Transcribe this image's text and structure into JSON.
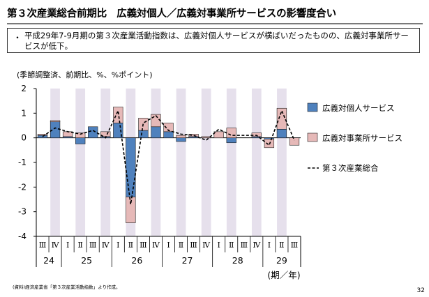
{
  "header": {
    "title": "第３次産業総合前期比　広義対個人／広義対事業所サービスの影響度合い"
  },
  "note": {
    "bullet": "・",
    "text": "平成29年7-9月期の第３次産業活動指数は、広義対個人サービスが横ばいだったものの、広義対事業所サービスが低下。"
  },
  "chart_data": {
    "type": "bar",
    "unit_label": "(季節調整済、前期比、%、%ポイント)",
    "x_unit_label": "(期／年)",
    "categories": [
      "Ⅲ",
      "Ⅳ",
      "Ⅰ",
      "Ⅱ",
      "Ⅲ",
      "Ⅳ",
      "Ⅰ",
      "Ⅱ",
      "Ⅲ",
      "Ⅳ",
      "Ⅰ",
      "Ⅱ",
      "Ⅲ",
      "Ⅳ",
      "Ⅰ",
      "Ⅱ",
      "Ⅲ",
      "Ⅳ",
      "Ⅰ",
      "Ⅱ",
      "Ⅲ"
    ],
    "years": [
      {
        "label": "24",
        "start": 0,
        "end": 1
      },
      {
        "label": "25",
        "start": 2,
        "end": 5
      },
      {
        "label": "26",
        "start": 6,
        "end": 9
      },
      {
        "label": "27",
        "start": 10,
        "end": 13
      },
      {
        "label": "28",
        "start": 14,
        "end": 17
      },
      {
        "label": "29",
        "start": 18,
        "end": 20
      }
    ],
    "ylim": [
      -4,
      2
    ],
    "yticks": [
      "2",
      "1",
      "0",
      "-1",
      "-2",
      "-3",
      "-4"
    ],
    "stacked": true,
    "series": [
      {
        "name": "広義対個人サービス",
        "kind": "bar",
        "color": "#4f81bd",
        "values": [
          0.1,
          0.65,
          0.05,
          -0.25,
          0.45,
          0.05,
          0.6,
          -2.4,
          0.3,
          0.45,
          0.25,
          -0.15,
          0.05,
          0.0,
          0.0,
          -0.2,
          0.0,
          0.05,
          -0.05,
          0.35,
          0.0
        ]
      },
      {
        "name": "広義対事業所サービス",
        "kind": "bar",
        "color": "#e6b9b8",
        "values": [
          0.05,
          0.05,
          0.2,
          0.2,
          0.0,
          0.2,
          0.65,
          -1.05,
          0.5,
          0.5,
          0.35,
          0.1,
          0.1,
          0.05,
          0.25,
          0.4,
          0.0,
          0.15,
          -0.35,
          0.85,
          -0.3
        ]
      },
      {
        "name": "第３次産業総合",
        "kind": "line",
        "color": "#000000",
        "values": [
          0.05,
          0.4,
          0.25,
          0.15,
          0.3,
          0.0,
          1.1,
          -2.7,
          0.6,
          0.9,
          0.3,
          0.15,
          0.1,
          -0.1,
          0.35,
          0.1,
          0.1,
          0.1,
          -0.3,
          1.1,
          -0.1
        ]
      }
    ],
    "legend_position": "right",
    "band_color": "#e6e0ec"
  },
  "footer": {
    "source": "(資料)経済産業省「第３次産業活動指数」より作成。",
    "page": "32"
  }
}
